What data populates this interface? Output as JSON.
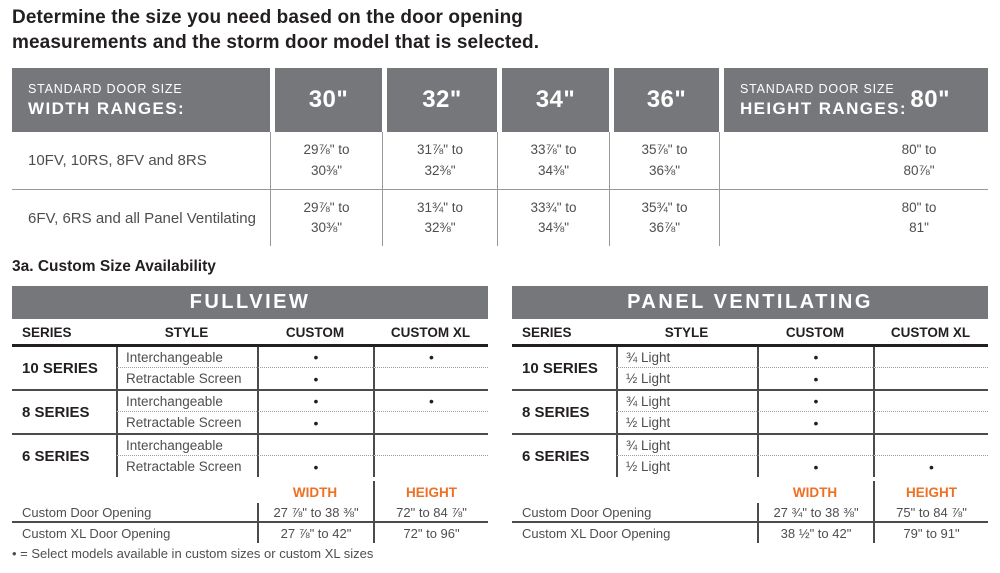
{
  "title": "Determine the size you need based on the door opening\nmeasurements and the storm door model that is selected.",
  "colors": {
    "header_gray": "#76777B",
    "accent_orange": "#ED7025",
    "heading_text": "#231F20",
    "body_text": "#4D4E50"
  },
  "standard_table": {
    "width_header": {
      "line1": "STANDARD DOOR SIZE",
      "line2": "WIDTH RANGES:"
    },
    "width_columns": [
      "30\"",
      "32\"",
      "34\"",
      "36\""
    ],
    "height_header": {
      "line1": "STANDARD DOOR SIZE",
      "line2": "HEIGHT RANGES:",
      "column": "80\""
    },
    "rows": [
      {
        "label": "10FV, 10RS, 8FV and 8RS",
        "values": [
          "29⅞\" to\n30⅜\"",
          "31⅞\" to\n32⅜\"",
          "33⅞\" to\n34⅜\"",
          "35⅞\" to\n36⅜\""
        ],
        "height": "80\" to\n80⅞\""
      },
      {
        "label": "6FV, 6RS and all Panel Ventilating",
        "values": [
          "29⅞\" to\n30⅜\"",
          "31¾\" to\n32⅜\"",
          "33¾\" to\n34⅜\"",
          "35¾\" to\n36⅞\""
        ],
        "height": "80\" to\n81\""
      }
    ]
  },
  "custom_heading": "3a. Custom Size Availability",
  "tables": [
    {
      "title": "FULLVIEW",
      "columns": [
        "SERIES",
        "STYLE",
        "CUSTOM",
        "CUSTOM XL"
      ],
      "groups": [
        {
          "series": "10 SERIES",
          "rows": [
            {
              "style": "Interchangeable",
              "custom": "•",
              "custom_xl": "•"
            },
            {
              "style": "Retractable Screen",
              "custom": "•",
              "custom_xl": ""
            }
          ]
        },
        {
          "series": "8 SERIES",
          "rows": [
            {
              "style": "Interchangeable",
              "custom": "•",
              "custom_xl": "•"
            },
            {
              "style": "Retractable Screen",
              "custom": "•",
              "custom_xl": ""
            }
          ]
        },
        {
          "series": "6 SERIES",
          "rows": [
            {
              "style": "Interchangeable",
              "custom": "",
              "custom_xl": ""
            },
            {
              "style": "Retractable Screen",
              "custom": "•",
              "custom_xl": ""
            }
          ]
        }
      ],
      "size_columns": {
        "width": "WIDTH",
        "height": "HEIGHT"
      },
      "size_rows": [
        {
          "label": "Custom Door Opening",
          "width": "27 ⅞\" to 38 ⅜\"",
          "height": "72\" to 84 ⅞\""
        },
        {
          "label": "Custom XL Door Opening",
          "width": "27 ⅞\" to 42\"",
          "height": "72\" to 96\""
        }
      ]
    },
    {
      "title": "PANEL VENTILATING",
      "columns": [
        "SERIES",
        "STYLE",
        "CUSTOM",
        "CUSTOM XL"
      ],
      "groups": [
        {
          "series": "10 SERIES",
          "rows": [
            {
              "style": "¾ Light",
              "custom": "•",
              "custom_xl": ""
            },
            {
              "style": "½ Light",
              "custom": "•",
              "custom_xl": ""
            }
          ]
        },
        {
          "series": "8 SERIES",
          "rows": [
            {
              "style": "¾ Light",
              "custom": "•",
              "custom_xl": ""
            },
            {
              "style": "½ Light",
              "custom": "•",
              "custom_xl": ""
            }
          ]
        },
        {
          "series": "6 SERIES",
          "rows": [
            {
              "style": "¾ Light",
              "custom": "",
              "custom_xl": ""
            },
            {
              "style": "½ Light",
              "custom": "•",
              "custom_xl": "•"
            }
          ]
        }
      ],
      "size_columns": {
        "width": "WIDTH",
        "height": "HEIGHT"
      },
      "size_rows": [
        {
          "label": "Custom Door Opening",
          "width": "27 ¾\" to 38 ⅜\"",
          "height": "75\" to 84 ⅞\""
        },
        {
          "label": "Custom XL Door Opening",
          "width": "38 ½\" to 42\"",
          "height": "79\" to 91\""
        }
      ]
    }
  ],
  "footnote": "• = Select models available in custom sizes or custom XL sizes"
}
